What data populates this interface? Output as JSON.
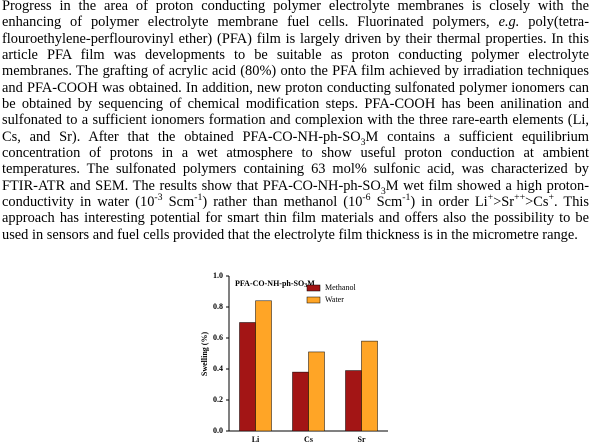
{
  "paragraph": [
    "Progress in the area of proton conducting polymer electrolyte membranes is closely with the enhancing of polymer electrolyte membrane fuel cells. Fluorinated polymers, ",
    "e.g.",
    " poly(tetra-flouroethylene-perflourovinyl ether) (PFA) film is largely driven by their thermal properties. In this article PFA film was developments to be suitable as proton conducting polymer electrolyte membranes. The grafting of acrylic acid (80%) onto the PFA film achieved by irradiation techniques and PFA-COOH was obtained. In addition, new proton conducting sulfonated polymer ionomers can be obtained by sequencing of chemical modification steps. PFA-COOH has been anilination and sulfonated to a sufficient ionomers formation and complexion with the three rare-earth elements (Li, Cs, and Sr). After that the obtained PFA-CO-NH-ph-SO",
    "3",
    "M contains a sufficient equilibrium concentration of protons in a wet atmosphere to show useful proton conduction at ambient temperatures. The sulfonated polymers containing 63 mol% sulfonic acid, was characterized by FTIR-ATR and SEM. The results show that PFA-CO-NH-ph-SO",
    "3",
    "M wet film showed a high proton-conductivity in water (10",
    "-3",
    " Scm",
    "-1",
    ") rather than methanol (10",
    "-6",
    " Scm",
    "-1",
    ") in order Li",
    "+",
    ">Sr",
    "++",
    ">Cs",
    "+",
    ". This approach has interesting potential for smart thin film materials and offers also the possibility to be used in sensors and fuel cells provided that the electrolyte film thickness is in the micrometre range."
  ],
  "chart_data": {
    "type": "bar",
    "title": [
      "PFA-CO-NH-ph-SO",
      "3",
      "M"
    ],
    "y_label": "Swelling (%)",
    "categories": [
      "Li",
      "Cs",
      "Sr"
    ],
    "series": [
      {
        "name": "Methanol",
        "color": "#a31515",
        "values": [
          0.7,
          0.38,
          0.39
        ]
      },
      {
        "name": "Water",
        "color": "#ffa526",
        "values": [
          0.84,
          0.51,
          0.58
        ]
      }
    ],
    "ylim": [
      0,
      1.0
    ],
    "yticks": [
      {
        "value": 0,
        "label": "0.0"
      },
      0.2,
      0.4,
      0.6,
      0.8,
      {
        "value": 1.0,
        "label": "1.0"
      }
    ],
    "legend": "upper right"
  }
}
